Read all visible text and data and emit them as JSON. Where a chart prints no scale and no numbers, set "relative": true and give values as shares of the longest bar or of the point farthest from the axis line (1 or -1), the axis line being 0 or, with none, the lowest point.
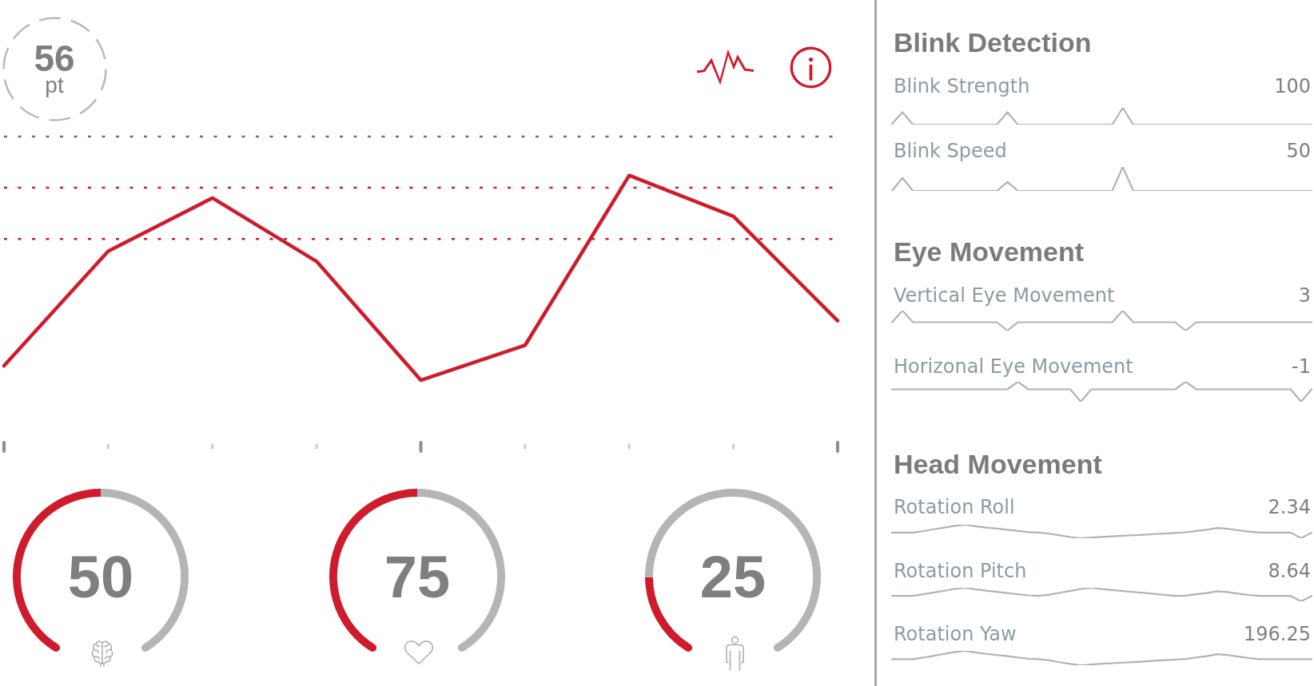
{
  "chart_data": [
    {
      "type": "line",
      "categories": [
        null,
        null,
        null,
        null,
        null,
        null,
        null,
        null,
        null
      ],
      "relative": true,
      "series": [
        {
          "color": "#cf1b2b",
          "values": [
            0.07,
            0.63,
            0.89,
            0.58,
            0,
            0.17,
            1,
            0.8,
            0.29
          ]
        }
      ],
      "ref_lines": [
        {
          "axis": "y",
          "value": 1.19,
          "color": "#6f6f6f",
          "line_style": "dotted"
        },
        {
          "axis": "y",
          "value": 0.94,
          "color": "#cf1b2b",
          "line_style": "dotted"
        },
        {
          "axis": "y",
          "value": 0.69,
          "color": "#cf1b2b",
          "line_style": "dotted"
        }
      ],
      "annotations": [
        "56 pt"
      ]
    },
    {
      "type": "donut",
      "categories": [
        null,
        null
      ],
      "values": [
        50,
        50
      ],
      "colors": [
        "#cf1b2b",
        "#b5b5b5"
      ],
      "annotations": [
        "50"
      ]
    },
    {
      "type": "donut",
      "categories": [
        null,
        null
      ],
      "values": [
        50,
        50
      ],
      "colors": [
        "#cf1b2b",
        "#b5b5b5"
      ],
      "annotations": [
        "75"
      ]
    },
    {
      "type": "donut",
      "categories": [
        null,
        null
      ],
      "values": [
        20,
        80
      ],
      "colors": [
        "#cf1b2b",
        "#b5b5b5"
      ],
      "annotations": [
        "25"
      ]
    },
    {
      "type": "other",
      "title": "Blink Detection"
    },
    {
      "type": "line",
      "title": "Blink Strength",
      "annotations": [
        "100"
      ],
      "relative": true,
      "categories": [
        null,
        null,
        null,
        null,
        null,
        null,
        null,
        null,
        null,
        null,
        null,
        null,
        null,
        null,
        null,
        null,
        null,
        null,
        null,
        null,
        null,
        null,
        null,
        null,
        null,
        null,
        null,
        null,
        null,
        null,
        null,
        null,
        null,
        null,
        null,
        null,
        null,
        null,
        null,
        null,
        null
      ],
      "series": [
        {
          "color": "#b2b2b2",
          "values": [
            0.05,
            0.74,
            0,
            0,
            0,
            0,
            0,
            0,
            0,
            0,
            0,
            0.74,
            0,
            0,
            0,
            0,
            0,
            0,
            0,
            0,
            0,
            0,
            1,
            0,
            0,
            0,
            0,
            0,
            0,
            0,
            0,
            0,
            0,
            0,
            0,
            0,
            0,
            0,
            0,
            0,
            0
          ]
        }
      ]
    },
    {
      "type": "line",
      "title": "Blink Speed",
      "annotations": [
        "50"
      ],
      "relative": true,
      "categories": [
        null,
        null,
        null,
        null,
        null,
        null,
        null,
        null,
        null,
        null,
        null,
        null,
        null,
        null,
        null,
        null,
        null,
        null,
        null,
        null,
        null,
        null,
        null,
        null,
        null,
        null,
        null,
        null,
        null,
        null,
        null,
        null,
        null,
        null,
        null,
        null,
        null,
        null,
        null,
        null,
        null
      ],
      "series": [
        {
          "color": "#b2b2b2",
          "values": [
            0,
            0.54,
            0,
            0,
            0,
            0,
            0,
            0,
            0,
            0,
            0,
            0.37,
            0,
            0,
            0,
            0,
            0,
            0,
            0,
            0,
            0,
            0,
            1,
            0,
            0,
            0,
            0,
            0,
            0,
            0,
            0,
            0,
            0,
            0,
            0,
            0,
            0,
            0,
            0,
            0,
            0
          ]
        }
      ]
    },
    {
      "type": "other",
      "title": "Eye Movement"
    },
    {
      "type": "line",
      "title": "Vertical Eye Movement",
      "annotations": [
        "3"
      ],
      "relative": true,
      "categories": [
        null,
        null,
        null,
        null,
        null,
        null,
        null,
        null,
        null,
        null,
        null,
        null,
        null,
        null,
        null,
        null,
        null,
        null,
        null,
        null,
        null,
        null,
        null,
        null,
        null,
        null,
        null,
        null,
        null,
        null,
        null,
        null,
        null,
        null,
        null,
        null,
        null,
        null,
        null,
        null,
        null
      ],
      "series": [
        {
          "color": "#b2b2b2",
          "values": [
            0.42,
            1,
            0.42,
            0.42,
            0.42,
            0.42,
            0.42,
            0.42,
            0.42,
            0.42,
            0.42,
            0,
            0.42,
            0.42,
            0.42,
            0.42,
            0.42,
            0.42,
            0.42,
            0.42,
            0.42,
            0.42,
            1,
            0.42,
            0.42,
            0.42,
            0.42,
            0.42,
            0,
            0.42,
            0.42,
            0.42,
            0.42,
            0.42,
            0.42,
            0.42,
            0.42,
            0.42,
            0.42,
            0.42,
            0.42
          ]
        }
      ]
    },
    {
      "type": "line",
      "title": "Horizonal Eye Movement",
      "annotations": [
        "-1"
      ],
      "relative": true,
      "categories": [
        null,
        null,
        null,
        null,
        null,
        null,
        null,
        null,
        null,
        null,
        null,
        null,
        null,
        null,
        null,
        null,
        null,
        null,
        null,
        null,
        null,
        null,
        null,
        null,
        null,
        null,
        null,
        null,
        null,
        null,
        null,
        null,
        null,
        null,
        null,
        null,
        null,
        null,
        null,
        null,
        null
      ],
      "series": [
        {
          "color": "#b2b2b2",
          "values": [
            0.62,
            0.62,
            0.62,
            0.62,
            0.62,
            0.62,
            0.62,
            0.62,
            0.62,
            0.62,
            0.62,
            0.62,
            1,
            0.62,
            0.62,
            0.62,
            0.62,
            0.62,
            0,
            0.62,
            0.62,
            0.62,
            0.62,
            0.62,
            0.62,
            0.62,
            0.62,
            0.62,
            1,
            0.62,
            0.62,
            0.62,
            0.62,
            0.62,
            0.62,
            0.62,
            0.62,
            0.62,
            0.62,
            0,
            0.62
          ]
        }
      ]
    },
    {
      "type": "other",
      "title": "Head Movement"
    },
    {
      "type": "line",
      "title": "Rotation Roll",
      "annotations": [
        "2.34"
      ],
      "relative": true,
      "categories": [
        null,
        null,
        null,
        null,
        null,
        null,
        null,
        null,
        null,
        null,
        null,
        null,
        null,
        null,
        null,
        null,
        null,
        null,
        null,
        null,
        null,
        null,
        null,
        null,
        null,
        null,
        null,
        null,
        null,
        null,
        null,
        null,
        null,
        null,
        null,
        null,
        null,
        null,
        null,
        null,
        null
      ],
      "series": [
        {
          "color": "#b2b2b2",
          "values": [
            0.42,
            0.42,
            0.42,
            0.53,
            0.66,
            0.79,
            0.92,
            1,
            0.88,
            0.79,
            0.71,
            0.63,
            0.54,
            0.45,
            0.42,
            0.34,
            0.21,
            0.09,
            0,
            0.05,
            0.1,
            0.14,
            0.18,
            0.22,
            0.26,
            0.31,
            0.35,
            0.39,
            0.44,
            0.54,
            0.63,
            0.76,
            0.7,
            0.59,
            0.49,
            0.42,
            0.42,
            0.42,
            0.42,
            0,
            0.42
          ]
        }
      ]
    },
    {
      "type": "line",
      "title": "Rotation Pitch",
      "annotations": [
        "8.64"
      ],
      "relative": true,
      "categories": [
        null,
        null,
        null,
        null,
        null,
        null,
        null,
        null,
        null,
        null,
        null,
        null,
        null,
        null,
        null,
        null,
        null,
        null,
        null,
        null,
        null,
        null,
        null,
        null,
        null,
        null,
        null,
        null,
        null,
        null,
        null,
        null,
        null,
        null,
        null,
        null,
        null,
        null,
        null,
        null,
        null
      ],
      "series": [
        {
          "color": "#b2b2b2",
          "values": [
            0.4,
            0.4,
            0.4,
            0.52,
            0.65,
            0.78,
            0.92,
            1,
            0.88,
            0.79,
            0.7,
            0.61,
            0.52,
            0.44,
            0.4,
            0.49,
            0.63,
            0.77,
            0.91,
            1,
            0.9,
            0.83,
            0.76,
            0.69,
            0.62,
            0.55,
            0.48,
            0.4,
            0.42,
            0.52,
            0.61,
            0.74,
            0.68,
            0.57,
            0.47,
            0.4,
            0.4,
            0.4,
            0.4,
            0,
            0.4
          ]
        }
      ]
    },
    {
      "type": "line",
      "title": "Rotation Yaw",
      "annotations": [
        "196.25"
      ],
      "relative": true,
      "categories": [
        null,
        null,
        null,
        null,
        null,
        null,
        null,
        null,
        null,
        null,
        null,
        null,
        null,
        null,
        null,
        null,
        null,
        null,
        null,
        null,
        null,
        null,
        null,
        null,
        null,
        null,
        null,
        null,
        null,
        null,
        null,
        null,
        null,
        null,
        null,
        null,
        null,
        null,
        null,
        null,
        null
      ],
      "series": [
        {
          "color": "#b2b2b2",
          "values": [
            0.42,
            0.42,
            0.42,
            0.53,
            0.66,
            0.79,
            0.92,
            1,
            0.88,
            0.79,
            0.71,
            0.63,
            0.54,
            0.45,
            0.42,
            0.34,
            0.21,
            0.09,
            0,
            0.05,
            0.1,
            0.14,
            0.18,
            0.22,
            0.26,
            0.31,
            0.35,
            0.39,
            0.44,
            0.54,
            0.63,
            0.77,
            0.71,
            0.6,
            0.5,
            0.42,
            0.42,
            0.42,
            0.42,
            0.42,
            0.42
          ]
        }
      ]
    }
  ]
}
